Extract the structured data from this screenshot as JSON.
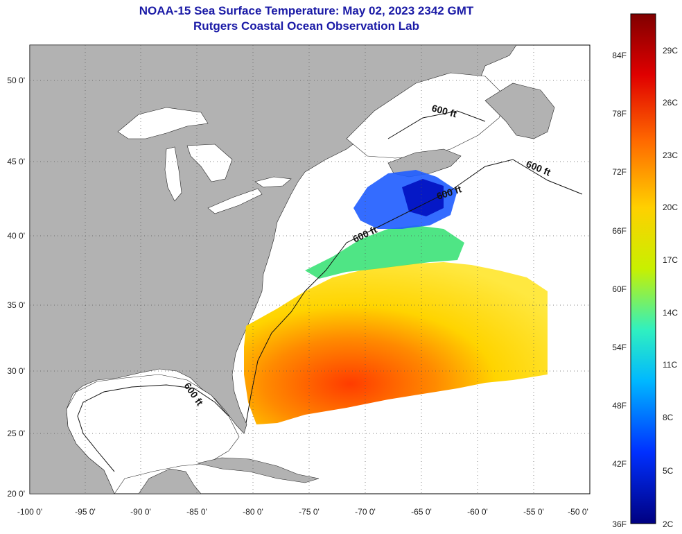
{
  "header": {
    "title": "NOAA-15 Sea Surface Temperature:  May 02, 2023 2342 GMT",
    "subtitle": "Rutgers Coastal Ocean Observation Lab"
  },
  "map": {
    "lon_ticks": [
      "-100 0'",
      "-95 0'",
      "-90 0'",
      "-85 0'",
      "-80 0'",
      "-75 0'",
      "-70 0'",
      "-65 0'",
      "-60 0'",
      "-55 0'",
      "-50 0'"
    ],
    "lat_ticks": [
      "50 0'",
      "45 0'",
      "40 0'",
      "35 0'",
      "30 0'",
      "25 0'",
      "20 0'"
    ],
    "contour_labels": [
      "600 ft",
      "600 ft",
      "600 ft",
      "600 ft",
      "600 ft"
    ],
    "colors": {
      "land": "#b2b2b2",
      "water": "#ffffff",
      "grid": "#555555"
    }
  },
  "colorbar": {
    "fahrenheit_labels": [
      "84F",
      "78F",
      "72F",
      "66F",
      "60F",
      "54F",
      "48F",
      "42F",
      "36F"
    ],
    "celsius_labels": [
      "29C",
      "26C",
      "23C",
      "20C",
      "17C",
      "14C",
      "11C",
      "8C",
      "5C",
      "2C"
    ]
  }
}
